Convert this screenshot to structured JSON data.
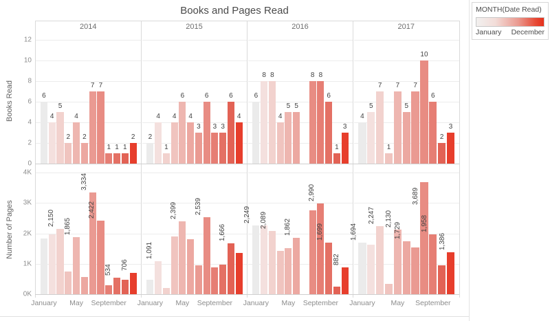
{
  "title": "Books and Pages Read",
  "legend": {
    "title": "MONTH(Date Read)",
    "start_label": "January",
    "end_label": "December",
    "gradient_start": "#f2f0ef",
    "gradient_end": "#e5301c"
  },
  "axes": {
    "books_row_label": "Books Read",
    "pages_row_label": "Number of Pages",
    "x_tick_months": [
      "January",
      "May",
      "September"
    ]
  },
  "years": [
    "2014",
    "2015",
    "2016",
    "2017"
  ],
  "month_colors": {
    "January": "#ebebeb",
    "February": "#f4e0de",
    "March": "#f2d2ce",
    "April": "#f0c4bf",
    "May": "#eeb6b0",
    "June": "#eca8a1",
    "July": "#ea9a92",
    "August": "#e88c83",
    "September": "#e67e74",
    "October": "#e47064",
    "November": "#e26255",
    "December": "#e73e2c"
  },
  "chart_data": [
    {
      "type": "bar",
      "measure": "Books Read",
      "ylabel": "Books Read",
      "ylim": [
        0,
        12
      ],
      "yticks": [
        0,
        2,
        4,
        6,
        8,
        10,
        12
      ],
      "ytick_labels": [
        "0",
        "2",
        "4",
        "6",
        "8",
        "10",
        "12"
      ],
      "grid": true,
      "panels": [
        {
          "year": "2014",
          "months": [
            "January",
            "February",
            "March",
            "April",
            "May",
            "June",
            "July",
            "August",
            "September",
            "October",
            "November",
            "December"
          ],
          "values": [
            6,
            4,
            5,
            2,
            4,
            2,
            7,
            7,
            1,
            1,
            1,
            2
          ]
        },
        {
          "year": "2015",
          "months": [
            "January",
            "February",
            "March",
            "April",
            "May",
            "June",
            "July",
            "August",
            "September",
            "October",
            "November",
            "December"
          ],
          "values": [
            2,
            4,
            1,
            4,
            6,
            4,
            3,
            6,
            3,
            3,
            6,
            4
          ]
        },
        {
          "year": "2016",
          "months": [
            "January",
            "February",
            "March",
            "April",
            "May",
            "June",
            "July",
            "August",
            "September",
            "October",
            "November",
            "December"
          ],
          "values": [
            6,
            8,
            8,
            4,
            5,
            5,
            null,
            8,
            8,
            6,
            1,
            3
          ]
        },
        {
          "year": "2017",
          "months": [
            "January",
            "February",
            "March",
            "April",
            "May",
            "June",
            "July",
            "August",
            "September",
            "November",
            "December"
          ],
          "values": [
            4,
            5,
            7,
            1,
            7,
            5,
            7,
            10,
            6,
            2,
            3
          ]
        }
      ]
    },
    {
      "type": "bar",
      "measure": "Number of Pages",
      "ylabel": "Number of Pages",
      "ylim": [
        0,
        4000
      ],
      "yticks": [
        0,
        1000,
        2000,
        3000,
        4000
      ],
      "ytick_labels": [
        "0K",
        "1K",
        "2K",
        "3K",
        "4K"
      ],
      "grid": true,
      "panels": [
        {
          "year": "2014",
          "months": [
            "January",
            "February",
            "March",
            "April",
            "May",
            "June",
            "July",
            "August",
            "September",
            "October",
            "November",
            "December"
          ],
          "values": [
            1820,
            1970,
            2150,
            750,
            1865,
            570,
            3334,
            2422,
            300,
            534,
            480,
            706
          ],
          "labels": [
            null,
            null,
            "2,150",
            null,
            "1,865",
            null,
            "3,334",
            "2,422",
            null,
            "534",
            null,
            "706"
          ]
        },
        {
          "year": "2015",
          "months": [
            "January",
            "February",
            "March",
            "April",
            "May",
            "June",
            "July",
            "August",
            "September",
            "October",
            "November",
            "December"
          ],
          "values": [
            470,
            1091,
            200,
            1900,
            2399,
            1810,
            960,
            2539,
            880,
            980,
            1666,
            1360
          ],
          "labels": [
            null,
            "1,091",
            null,
            null,
            "2,399",
            null,
            null,
            "2,539",
            null,
            null,
            "1,666",
            null
          ]
        },
        {
          "year": "2016",
          "months": [
            "January",
            "February",
            "March",
            "April",
            "May",
            "June",
            "July",
            "August",
            "September",
            "October",
            "November",
            "December"
          ],
          "values": [
            2249,
            2255,
            2089,
            1430,
            1510,
            1862,
            null,
            2750,
            2990,
            1699,
            250,
            882
          ],
          "labels": [
            "2,249",
            null,
            "2,089",
            null,
            null,
            "1,862",
            null,
            null,
            "2,990",
            "1,699",
            null,
            "882"
          ]
        },
        {
          "year": "2017",
          "months": [
            "January",
            "February",
            "March",
            "April",
            "May",
            "June",
            "July",
            "August",
            "September",
            "November",
            "December"
          ],
          "values": [
            1694,
            1630,
            2247,
            350,
            2130,
            1729,
            1540,
            3689,
            1958,
            960,
            1386
          ],
          "labels": [
            "1,694",
            null,
            "2,247",
            null,
            "2,130",
            "1,729",
            null,
            "3,689",
            "1,958",
            null,
            "1,386"
          ],
          "inside_label_indices": [
            7
          ]
        }
      ]
    }
  ]
}
